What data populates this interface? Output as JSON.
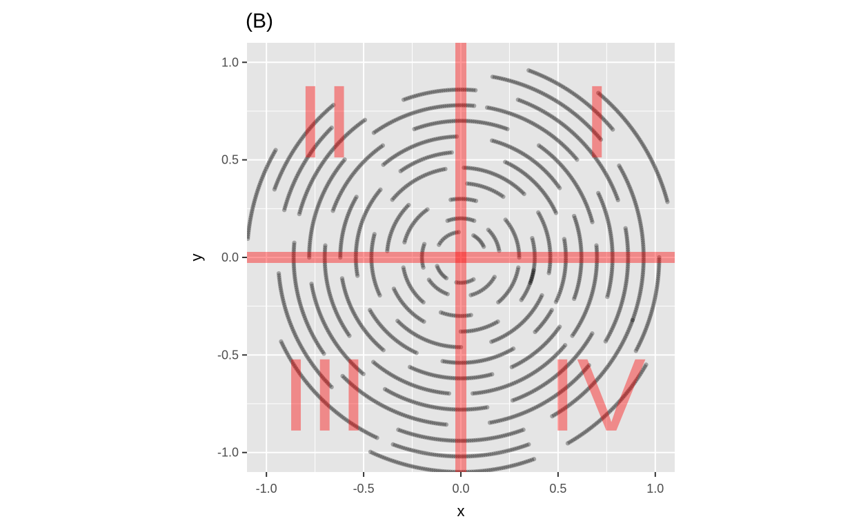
{
  "chart_data": {
    "type": "scatter",
    "title": "(B)",
    "xlabel": "x",
    "ylabel": "y",
    "xlim": [
      -1.1,
      1.1
    ],
    "ylim": [
      -1.1,
      1.1
    ],
    "x_ticks": [
      -1.0,
      -0.5,
      0.0,
      0.5,
      1.0
    ],
    "y_ticks": [
      -1.0,
      -0.5,
      0.0,
      0.5,
      1.0
    ],
    "x_tick_labels": [
      "-1.0",
      "-0.5",
      "0.0",
      "0.5",
      "1.0"
    ],
    "y_tick_labels": [
      "-1.0",
      "-0.5",
      "0.0",
      "0.5",
      "1.0"
    ],
    "grid": true,
    "panel_background": "#e5e5e5",
    "point_color": "#000000",
    "reference_lines": [
      {
        "orientation": "horizontal",
        "y": 0,
        "color": "#ff0000",
        "opacity": 0.4
      },
      {
        "orientation": "vertical",
        "x": 0,
        "color": "#ff0000",
        "opacity": 0.4
      }
    ],
    "quadrant_labels": [
      {
        "text": "I",
        "x": 0.7,
        "y": 0.7
      },
      {
        "text": "II",
        "x": -0.7,
        "y": 0.7
      },
      {
        "text": "III",
        "x": -0.7,
        "y": -0.7
      },
      {
        "text": "IV",
        "x": 0.7,
        "y": -0.7
      }
    ],
    "quadrant_label_color": "#ff0000",
    "rings": [
      {
        "r": 0.13,
        "arcs": [
          [
            25,
            60
          ],
          [
            95,
            150
          ],
          [
            200,
            235
          ],
          [
            260,
            300
          ]
        ]
      },
      {
        "r": 0.2,
        "arcs": [
          [
            10,
            45
          ],
          [
            70,
            110
          ],
          [
            160,
            195
          ],
          [
            215,
            250
          ],
          [
            285,
            330
          ]
        ]
      },
      {
        "r": 0.3,
        "arcs": [
          [
            0,
            40
          ],
          [
            75,
            100
          ],
          [
            125,
            165
          ],
          [
            190,
            230
          ],
          [
            250,
            280
          ],
          [
            310,
            350
          ]
        ]
      },
      {
        "r": 0.38,
        "arcs": [
          [
            -20,
            15
          ],
          [
            55,
            85
          ],
          [
            135,
            175
          ],
          [
            205,
            240
          ],
          [
            270,
            300
          ],
          [
            325,
            350
          ]
        ]
      },
      {
        "r": 0.46,
        "arcs": [
          [
            -10,
            30
          ],
          [
            45,
            88
          ],
          [
            100,
            140
          ],
          [
            165,
            205
          ],
          [
            225,
            270
          ],
          [
            290,
            335
          ]
        ]
      },
      {
        "r": 0.54,
        "arcs": [
          [
            -25,
            10
          ],
          [
            25,
            65
          ],
          [
            95,
            125
          ],
          [
            140,
            190
          ],
          [
            210,
            245
          ],
          [
            260,
            300
          ],
          [
            315,
            330
          ]
        ]
      },
      {
        "r": 0.62,
        "arcs": [
          [
            -20,
            20
          ],
          [
            35,
            75
          ],
          [
            92,
            130
          ],
          [
            150,
            180
          ],
          [
            190,
            230
          ],
          [
            245,
            285
          ],
          [
            295,
            325
          ]
        ]
      },
      {
        "r": 0.7,
        "arcs": [
          [
            -35,
            5
          ],
          [
            15,
            55
          ],
          [
            70,
            110
          ],
          [
            125,
            160
          ],
          [
            175,
            215
          ],
          [
            230,
            265
          ],
          [
            275,
            320
          ]
        ]
      },
      {
        "r": 0.78,
        "arcs": [
          [
            -15,
            25
          ],
          [
            40,
            80
          ],
          [
            85,
            125
          ],
          [
            140,
            180
          ],
          [
            190,
            230
          ],
          [
            240,
            280
          ],
          [
            290,
            330
          ]
        ]
      },
      {
        "r": 0.86,
        "arcs": [
          [
            -30,
            10
          ],
          [
            20,
            70
          ],
          [
            85,
            110
          ],
          [
            125,
            165
          ],
          [
            175,
            215
          ],
          [
            225,
            265
          ],
          [
            280,
            320
          ]
        ]
      },
      {
        "r": 0.94,
        "arcs": [
          [
            -20,
            30
          ],
          [
            40,
            80
          ],
          [
            135,
            165
          ],
          [
            185,
            225
          ],
          [
            250,
            290
          ],
          [
            300,
            340
          ]
        ]
      },
      {
        "r": 1.02,
        "arcs": [
          [
            -28,
            0
          ],
          [
            40,
            70
          ],
          [
            130,
            160
          ],
          [
            205,
            245
          ],
          [
            250,
            290
          ]
        ]
      },
      {
        "r": 1.1,
        "arcs": [
          [
            15,
            50
          ],
          [
            150,
            175
          ],
          [
            245,
            290
          ],
          [
            300,
            330
          ]
        ]
      }
    ]
  }
}
